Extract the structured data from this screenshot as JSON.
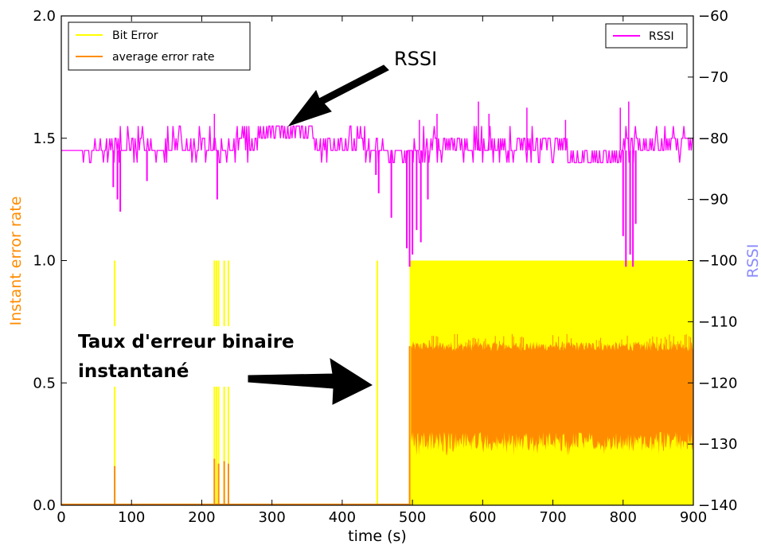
{
  "chart_data": {
    "type": "line",
    "xlabel": "time (s)",
    "ylabel_left": "Instant error rate",
    "ylabel_right": "RSSI",
    "xlim": [
      0,
      900
    ],
    "ylim_left": [
      0.0,
      2.0
    ],
    "ylim_right": [
      -140,
      -60
    ],
    "x_ticks": [
      "0",
      "100",
      "200",
      "300",
      "400",
      "500",
      "600",
      "700",
      "800",
      "900"
    ],
    "y_left_ticks": [
      "0.0",
      "0.5",
      "1.0",
      "1.5",
      "2.0"
    ],
    "y_right_ticks": [
      "-140",
      "-130",
      "-120",
      "-110",
      "-100",
      "-90",
      "-80",
      "-70",
      "-60"
    ],
    "grid": false,
    "legend_left": {
      "placement": "top-left",
      "entries": [
        "Bit Error",
        "average error rate"
      ]
    },
    "legend_right": {
      "placement": "top-right",
      "entries": [
        "RSSI"
      ]
    },
    "series": [
      {
        "name": "Bit Error",
        "axis": "left",
        "color": "#ffff00",
        "spikes": [
          {
            "x": 76,
            "y": 1.0
          },
          {
            "x": 218,
            "y": 1.0
          },
          {
            "x": 221,
            "y": 1.0
          },
          {
            "x": 224,
            "y": 1.0
          },
          {
            "x": 232,
            "y": 1.0
          },
          {
            "x": 238,
            "y": 1.0
          },
          {
            "x": 450,
            "y": 1.0
          }
        ],
        "dense_band": {
          "x_start": 496,
          "x_end": 900,
          "y_min": 0.0,
          "y_max": 1.0
        }
      },
      {
        "name": "average error rate",
        "axis": "left",
        "color": "#ff8c00",
        "spikes": [
          {
            "x": 76,
            "y": 0.16
          },
          {
            "x": 218,
            "y": 0.19
          },
          {
            "x": 224,
            "y": 0.17
          },
          {
            "x": 232,
            "y": 0.18
          },
          {
            "x": 238,
            "y": 0.17
          },
          {
            "x": 496,
            "y": 0.65
          }
        ],
        "dense_band": {
          "x_start": 498,
          "x_end": 900,
          "center": 0.48,
          "low": 0.3,
          "high": 0.65,
          "noise_low": 0.2,
          "noise_high": 0.7
        }
      },
      {
        "name": "RSSI",
        "axis": "right",
        "color": "#ff00ff",
        "baseline": -82,
        "levels": [
          -84,
          -82,
          -80,
          -78
        ],
        "dips": [
          {
            "x": 74,
            "y": -88
          },
          {
            "x": 80,
            "y": -90
          },
          {
            "x": 84,
            "y": -92
          },
          {
            "x": 122,
            "y": -87
          },
          {
            "x": 222,
            "y": -90
          },
          {
            "x": 448,
            "y": -86
          },
          {
            "x": 452,
            "y": -89
          },
          {
            "x": 470,
            "y": -93
          },
          {
            "x": 492,
            "y": -98
          },
          {
            "x": 496,
            "y": -101
          },
          {
            "x": 500,
            "y": -99
          },
          {
            "x": 506,
            "y": -95
          },
          {
            "x": 512,
            "y": -97
          },
          {
            "x": 522,
            "y": -90
          },
          {
            "x": 800,
            "y": -96
          },
          {
            "x": 804,
            "y": -101
          },
          {
            "x": 810,
            "y": -99
          },
          {
            "x": 814,
            "y": -101
          },
          {
            "x": 818,
            "y": -94
          }
        ],
        "peaks": [
          {
            "x": 218,
            "y": -76
          },
          {
            "x": 510,
            "y": -77
          },
          {
            "x": 535,
            "y": -76
          },
          {
            "x": 594,
            "y": -74
          },
          {
            "x": 609,
            "y": -76
          },
          {
            "x": 663,
            "y": -75
          },
          {
            "x": 718,
            "y": -77
          },
          {
            "x": 796,
            "y": -75
          },
          {
            "x": 808,
            "y": -74
          }
        ]
      }
    ],
    "annotations": [
      {
        "text": "RSSI",
        "style": "plain",
        "arrow_to": {
          "x": 325,
          "y_right": -78
        }
      },
      {
        "text_lines": [
          "Taux d'erreur binaire",
          "instantané"
        ],
        "style": "bold",
        "arrow_to": {
          "x": 445,
          "y_left": 0.5
        }
      }
    ]
  }
}
